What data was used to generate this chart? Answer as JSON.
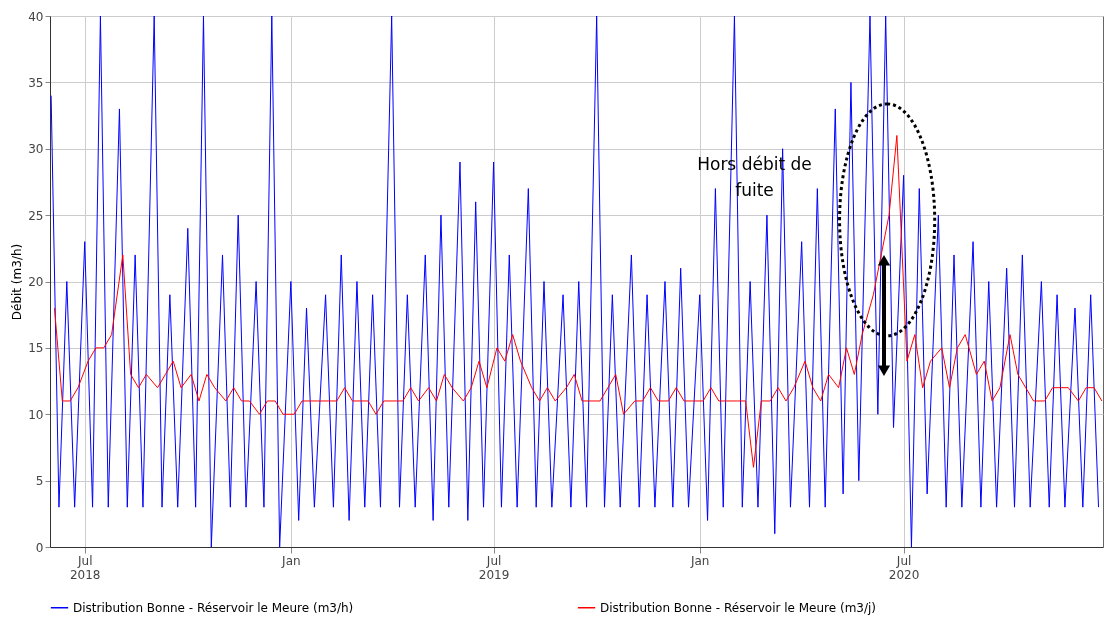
{
  "chart_data": {
    "type": "line",
    "ylabel": "Débit (m3/h)",
    "xlim": [
      "2018-05-31",
      "2020-12-26"
    ],
    "ylim": [
      0,
      40
    ],
    "yticks": [
      0,
      5,
      10,
      15,
      20,
      25,
      30,
      35,
      40
    ],
    "xticks": [
      {
        "value": "2018-07-01",
        "label": "Jul\n2018"
      },
      {
        "value": "2019-01-01",
        "label": "Jan"
      },
      {
        "value": "2019-07-01",
        "label": "Jul\n2019"
      },
      {
        "value": "2020-01-01",
        "label": "Jan"
      },
      {
        "value": "2020-07-01",
        "label": "Jul\n2020"
      }
    ],
    "grid": true,
    "legend": "bottom",
    "marker": "none",
    "line_style": "solid",
    "annotations": [
      "Hors débit de fuite"
    ],
    "series": [
      {
        "name": "Distribution Bonne - Réservoir le Meure (m3/h)",
        "color": "#0000ff",
        "x": [
          "2018-06-01",
          "2018-06-08",
          "2018-06-15",
          "2018-06-22",
          "2018-07-01",
          "2018-07-08",
          "2018-07-15",
          "2018-07-22",
          "2018-08-01",
          "2018-08-08",
          "2018-08-15",
          "2018-08-22",
          "2018-09-01",
          "2018-09-08",
          "2018-09-15",
          "2018-09-22",
          "2018-10-01",
          "2018-10-08",
          "2018-10-15",
          "2018-10-22",
          "2018-11-01",
          "2018-11-08",
          "2018-11-15",
          "2018-11-22",
          "2018-12-01",
          "2018-12-08",
          "2018-12-15",
          "2018-12-22",
          "2019-01-01",
          "2019-01-08",
          "2019-01-15",
          "2019-01-22",
          "2019-02-01",
          "2019-02-08",
          "2019-02-15",
          "2019-02-22",
          "2019-03-01",
          "2019-03-08",
          "2019-03-15",
          "2019-03-22",
          "2019-04-01",
          "2019-04-08",
          "2019-04-15",
          "2019-04-22",
          "2019-05-01",
          "2019-05-08",
          "2019-05-15",
          "2019-05-22",
          "2019-06-01",
          "2019-06-08",
          "2019-06-15",
          "2019-06-22",
          "2019-07-01",
          "2019-07-08",
          "2019-07-15",
          "2019-07-22",
          "2019-08-01",
          "2019-08-08",
          "2019-08-15",
          "2019-08-22",
          "2019-09-01",
          "2019-09-08",
          "2019-09-15",
          "2019-09-22",
          "2019-10-01",
          "2019-10-08",
          "2019-10-15",
          "2019-10-22",
          "2019-11-01",
          "2019-11-08",
          "2019-11-15",
          "2019-11-22",
          "2019-12-01",
          "2019-12-08",
          "2019-12-15",
          "2019-12-22",
          "2020-01-01",
          "2020-01-08",
          "2020-01-15",
          "2020-01-22",
          "2020-02-01",
          "2020-02-08",
          "2020-02-15",
          "2020-02-22",
          "2020-03-01",
          "2020-03-08",
          "2020-03-15",
          "2020-03-22",
          "2020-04-01",
          "2020-04-08",
          "2020-04-15",
          "2020-04-22",
          "2020-05-01",
          "2020-05-08",
          "2020-05-15",
          "2020-05-22",
          "2020-06-01",
          "2020-06-08",
          "2020-06-15",
          "2020-06-22",
          "2020-07-01",
          "2020-07-08",
          "2020-07-15",
          "2020-07-22",
          "2020-08-01",
          "2020-08-08",
          "2020-08-15",
          "2020-08-22",
          "2020-09-01",
          "2020-09-08",
          "2020-09-15",
          "2020-09-22",
          "2020-10-01",
          "2020-10-08",
          "2020-10-15",
          "2020-10-22",
          "2020-11-01",
          "2020-11-08",
          "2020-11-15",
          "2020-11-22",
          "2020-12-01",
          "2020-12-08",
          "2020-12-15",
          "2020-12-22"
        ],
        "values": [
          34,
          3,
          20,
          3,
          23,
          3,
          40,
          3,
          33,
          3,
          22,
          3,
          40,
          3,
          19,
          3,
          24,
          3,
          40,
          0,
          22,
          3,
          25,
          3,
          20,
          3,
          40,
          0,
          20,
          2,
          18,
          3,
          19,
          3,
          22,
          2,
          20,
          3,
          19,
          3,
          40,
          3,
          19,
          3,
          22,
          2,
          25,
          3,
          29,
          2,
          26,
          3,
          29,
          3,
          22,
          3,
          27,
          3,
          20,
          3,
          19,
          3,
          20,
          3,
          40,
          3,
          19,
          3,
          22,
          3,
          19,
          3,
          20,
          3,
          21,
          3,
          19,
          2,
          27,
          3,
          40,
          3,
          20,
          3,
          25,
          1,
          30,
          3,
          23,
          3,
          27,
          3,
          33,
          4,
          35,
          5,
          40,
          10,
          40,
          9,
          28,
          0,
          27,
          4,
          25,
          3,
          22,
          3,
          23,
          3,
          20,
          3,
          21,
          3,
          22,
          3,
          20,
          3,
          19,
          3,
          18,
          3,
          19,
          3
        ]
      },
      {
        "name": "Distribution Bonne - Réservoir le Meure (m3/j)",
        "color": "#ff0000",
        "x": [
          "2018-06-04",
          "2018-06-11",
          "2018-06-18",
          "2018-06-25",
          "2018-07-04",
          "2018-07-11",
          "2018-07-18",
          "2018-07-25",
          "2018-08-04",
          "2018-08-11",
          "2018-08-18",
          "2018-08-25",
          "2018-09-04",
          "2018-09-11",
          "2018-09-18",
          "2018-09-25",
          "2018-10-04",
          "2018-10-11",
          "2018-10-18",
          "2018-10-25",
          "2018-11-04",
          "2018-11-11",
          "2018-11-18",
          "2018-11-25",
          "2018-12-04",
          "2018-12-11",
          "2018-12-18",
          "2018-12-25",
          "2019-01-04",
          "2019-01-11",
          "2019-01-18",
          "2019-01-25",
          "2019-02-04",
          "2019-02-11",
          "2019-02-18",
          "2019-02-25",
          "2019-03-04",
          "2019-03-11",
          "2019-03-18",
          "2019-03-25",
          "2019-04-04",
          "2019-04-11",
          "2019-04-18",
          "2019-04-25",
          "2019-05-04",
          "2019-05-11",
          "2019-05-18",
          "2019-05-25",
          "2019-06-04",
          "2019-06-11",
          "2019-06-18",
          "2019-06-25",
          "2019-07-04",
          "2019-07-11",
          "2019-07-18",
          "2019-07-25",
          "2019-08-04",
          "2019-08-11",
          "2019-08-18",
          "2019-08-25",
          "2019-09-04",
          "2019-09-11",
          "2019-09-18",
          "2019-09-25",
          "2019-10-04",
          "2019-10-11",
          "2019-10-18",
          "2019-10-25",
          "2019-11-04",
          "2019-11-11",
          "2019-11-18",
          "2019-11-25",
          "2019-12-04",
          "2019-12-11",
          "2019-12-18",
          "2019-12-25",
          "2020-01-04",
          "2020-01-11",
          "2020-01-18",
          "2020-01-25",
          "2020-02-04",
          "2020-02-11",
          "2020-02-18",
          "2020-02-25",
          "2020-03-04",
          "2020-03-11",
          "2020-03-18",
          "2020-03-25",
          "2020-04-04",
          "2020-04-11",
          "2020-04-18",
          "2020-04-25",
          "2020-05-04",
          "2020-05-11",
          "2020-05-18",
          "2020-05-25",
          "2020-06-04",
          "2020-06-11",
          "2020-06-18",
          "2020-06-25",
          "2020-07-04",
          "2020-07-11",
          "2020-07-18",
          "2020-07-25",
          "2020-08-04",
          "2020-08-11",
          "2020-08-18",
          "2020-08-25",
          "2020-09-04",
          "2020-09-11",
          "2020-09-18",
          "2020-09-25",
          "2020-10-04",
          "2020-10-11",
          "2020-10-18",
          "2020-10-25",
          "2020-11-04",
          "2020-11-11",
          "2020-11-18",
          "2020-11-25",
          "2020-12-04",
          "2020-12-11",
          "2020-12-18",
          "2020-12-25"
        ],
        "values": [
          18,
          11,
          11,
          12,
          14,
          15,
          15,
          16,
          22,
          13,
          12,
          13,
          12,
          13,
          14,
          12,
          13,
          11,
          13,
          12,
          11,
          12,
          11,
          11,
          10,
          11,
          11,
          10,
          10,
          11,
          11,
          11,
          11,
          11,
          12,
          11,
          11,
          11,
          10,
          11,
          11,
          11,
          12,
          11,
          12,
          11,
          13,
          12,
          11,
          12,
          14,
          12,
          15,
          14,
          16,
          14,
          12,
          11,
          12,
          11,
          12,
          13,
          11,
          11,
          11,
          12,
          13,
          10,
          11,
          11,
          12,
          11,
          11,
          12,
          11,
          11,
          11,
          12,
          11,
          11,
          11,
          11,
          6,
          11,
          11,
          12,
          11,
          12,
          14,
          12,
          11,
          13,
          12,
          15,
          13,
          16,
          19,
          22,
          25,
          31,
          14,
          16,
          12,
          14,
          15,
          12,
          15,
          16,
          13,
          14,
          11,
          12,
          16,
          13,
          12,
          11,
          11,
          12,
          12,
          12,
          11,
          12,
          12,
          11
        ]
      }
    ]
  }
}
